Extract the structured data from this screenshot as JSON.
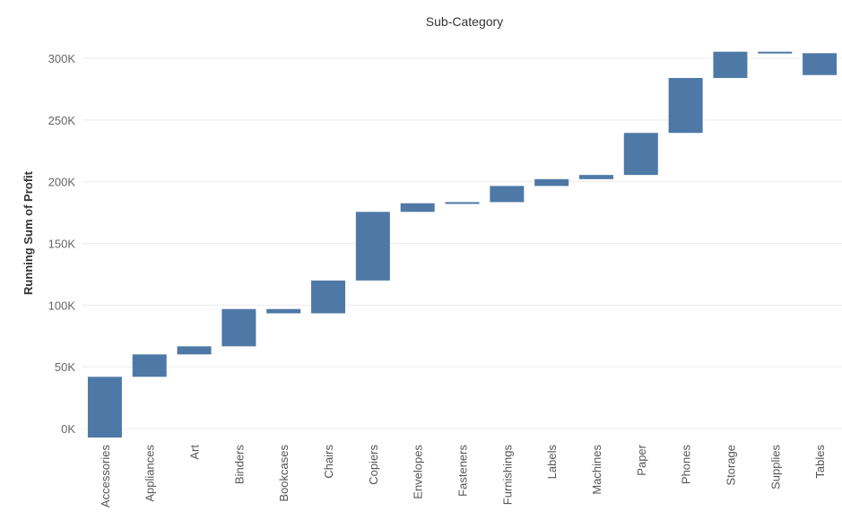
{
  "chart_data": {
    "type": "waterfall",
    "title": "Sub-Category",
    "ylabel": "Running Sum of Profit",
    "ylim": [
      -5000,
      318000
    ],
    "yticks": [
      0,
      50000,
      100000,
      150000,
      200000,
      250000,
      300000
    ],
    "ytick_labels": [
      "0K",
      "50K",
      "100K",
      "150K",
      "200K",
      "250K",
      "300K"
    ],
    "grid": true,
    "color": "#4e79a7",
    "categories": [
      "Accessories",
      "Appliances",
      "Art",
      "Binders",
      "Bookcases",
      "Chairs",
      "Copiers",
      "Envelopes",
      "Fasteners",
      "Furnishings",
      "Labels",
      "Machines",
      "Paper",
      "Phones",
      "Storage",
      "Supplies",
      "Tables"
    ],
    "values": [
      41937,
      18138,
      6528,
      30222,
      -3473,
      26590,
      55618,
      6964,
      950,
      13059,
      5546,
      3385,
      34054,
      44516,
      21279,
      -1189,
      -17725
    ],
    "running_totals": [
      41937,
      60075,
      66603,
      96825,
      93352,
      119942,
      175560,
      182524,
      183474,
      196533,
      202079,
      205464,
      239518,
      284034,
      305313,
      304124,
      286399
    ]
  }
}
